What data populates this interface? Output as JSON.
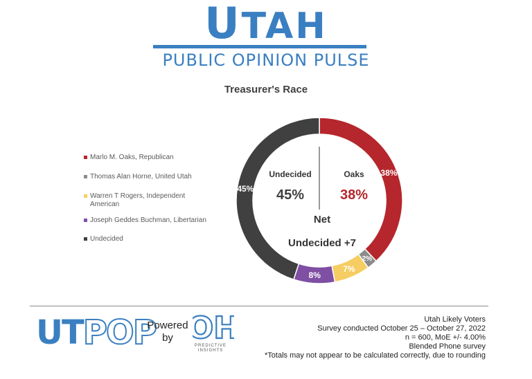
{
  "header": {
    "logo_word_initial": "U",
    "logo_word_rest": "TAH",
    "logo_subtitle": "PUBLIC OPINION PULSE",
    "brand_color": "#3a7fc1"
  },
  "chart_data": {
    "type": "pie",
    "title": "Treasurer's Race",
    "legend_position": "left",
    "donut": true,
    "slices": [
      {
        "name": "Marlo M. Oaks, Republican",
        "value": 38,
        "label": "38%",
        "color": "#b5272d"
      },
      {
        "name": "Thomas Alan Horne, United Utah",
        "value": 2,
        "label": "2%",
        "color": "#8c8c8c"
      },
      {
        "name": "Warren T Rogers, Independent American",
        "value": 7,
        "label": "7%",
        "color": "#f5cd63"
      },
      {
        "name": "Joseph Geddes Buchman, Libertarian",
        "value": 8,
        "label": "8%",
        "color": "#7f4fa3"
      },
      {
        "name": "Undecided",
        "value": 45,
        "label": "45%",
        "color": "#404040"
      }
    ],
    "legend_entries": [
      "Marlo M. Oaks, Republican",
      "Thomas Alan Horne, United Utah",
      "Warren T Rogers, Independent American",
      "Joseph Geddes Buchman, Libertarian",
      "Undecided"
    ],
    "annotations": {
      "left_name": "Undecided",
      "left_value": "45%",
      "left_color": "#404040",
      "right_name": "Oaks",
      "right_value": "38%",
      "right_color": "#b5272d",
      "net_label": "Net",
      "net_value": "Undecided +7"
    }
  },
  "footer": {
    "ut_logo_a": "UT",
    "ut_logo_b": "POP",
    "powered_line1": "Powered",
    "powered_line2": "by",
    "partner_mark": "OH",
    "partner_name": "PREDICTIVE INSIGHTS",
    "notes": [
      "Utah Likely Voters",
      "Survey conducted October 25 – October 27, 2022",
      "n = 600, MoE +/- 4.00%",
      "Blended Phone survey",
      "*Totals may not appear to be calculated correctly, due to rounding"
    ]
  }
}
